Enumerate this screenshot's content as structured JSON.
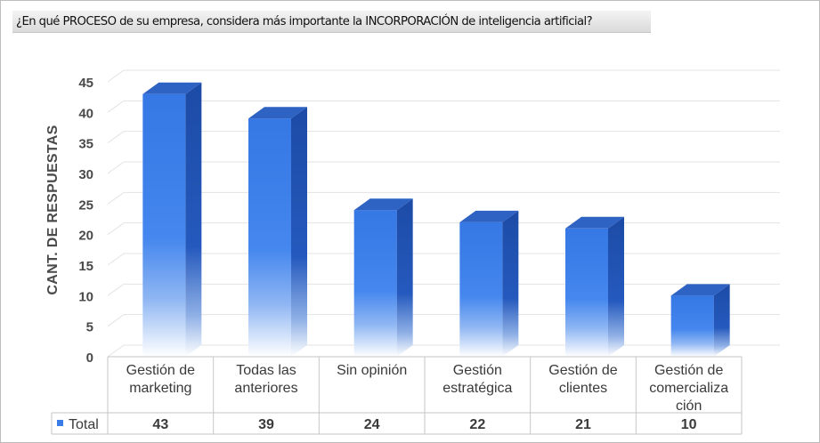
{
  "question": "¿En qué PROCESO de su empresa, considera más importante la INCORPORACIÓN de inteligencia artificial?",
  "chart_data": {
    "type": "bar",
    "title": "",
    "xlabel": "",
    "ylabel": "CANT. DE RESPUESTAS",
    "ylim": [
      0,
      45
    ],
    "yticks": [
      0,
      5,
      10,
      15,
      20,
      25,
      30,
      35,
      40,
      45
    ],
    "categories": [
      [
        "Gestión de",
        "marketing"
      ],
      [
        "Todas las",
        "anteriores"
      ],
      [
        "Sin opinión"
      ],
      [
        "Gestión",
        "estratégica"
      ],
      [
        "Gestión de",
        "clientes"
      ],
      [
        "Gestión de",
        "comercializa",
        "ción"
      ]
    ],
    "series": [
      {
        "name": "Total",
        "values": [
          43,
          39,
          24,
          22,
          21,
          10
        ],
        "color": "#3b7de8"
      }
    ],
    "grid": true,
    "legend": "data-table",
    "colors": {
      "bar_front": "#3b7de8",
      "bar_side": "#1f4fa8",
      "bar_top": "#2e63c4",
      "grid": "#e3e3e3"
    }
  }
}
